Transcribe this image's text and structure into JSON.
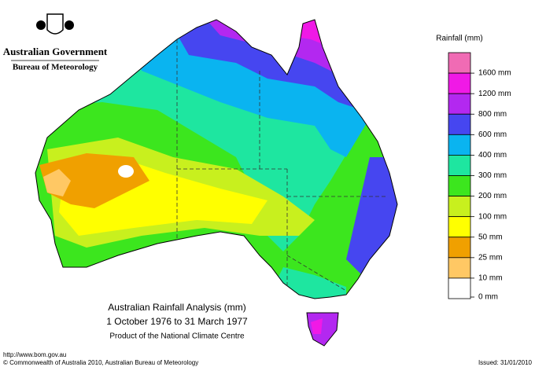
{
  "logo": {
    "agency": "Australian Government",
    "bureau": "Bureau of Meteorology"
  },
  "legend": {
    "title": "Rainfall (mm)",
    "colors": [
      "#f06bb4",
      "#f019e6",
      "#b328f0",
      "#4646f0",
      "#0ab4f0",
      "#1ee6a0",
      "#3ce61e",
      "#c8f01e",
      "#ffff00",
      "#f0a000",
      "#ffc864",
      "#ffffff"
    ],
    "labels": [
      "1600 mm",
      "1200 mm",
      "800 mm",
      "600 mm",
      "400 mm",
      "300 mm",
      "200 mm",
      "100 mm",
      "50 mm",
      "25 mm",
      "10 mm",
      "0 mm"
    ]
  },
  "title": {
    "line1": "Australian Rainfall Analysis (mm)",
    "line2": "1 October 1976 to 31 March 1977",
    "line3": "Product of the National Climate Centre"
  },
  "footer": {
    "url": "http://www.bom.gov.au",
    "copyright": "© Commonwealth of Australia 2010, Australian Bureau of Meteorology",
    "issued": "Issued: 31/01/2010"
  }
}
